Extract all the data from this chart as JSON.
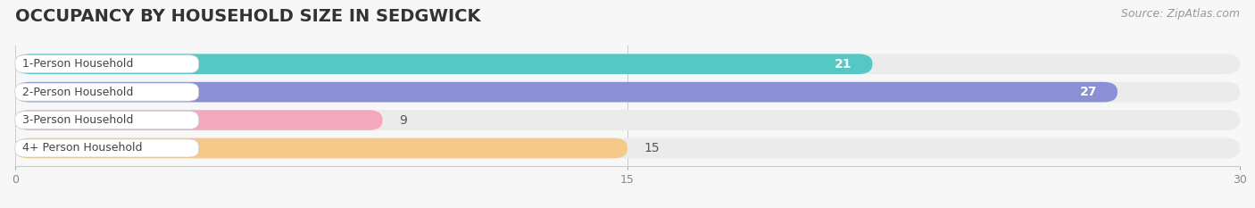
{
  "title": "OCCUPANCY BY HOUSEHOLD SIZE IN SEDGWICK",
  "source": "Source: ZipAtlas.com",
  "categories": [
    "1-Person Household",
    "2-Person Household",
    "3-Person Household",
    "4+ Person Household"
  ],
  "values": [
    21,
    27,
    9,
    15
  ],
  "bar_colors": [
    "#55c8c5",
    "#8b8fd4",
    "#f4a8be",
    "#f5c98a"
  ],
  "xlim": [
    0,
    30
  ],
  "xticks": [
    0,
    15,
    30
  ],
  "background_color": "#f7f7f7",
  "bar_bg_color": "#ebebeb",
  "title_fontsize": 14,
  "source_fontsize": 9,
  "bar_label_fontsize": 10,
  "category_fontsize": 9,
  "bar_height": 0.72,
  "value_label_inside_color": "#ffffff",
  "value_label_outside_color": "#666666"
}
